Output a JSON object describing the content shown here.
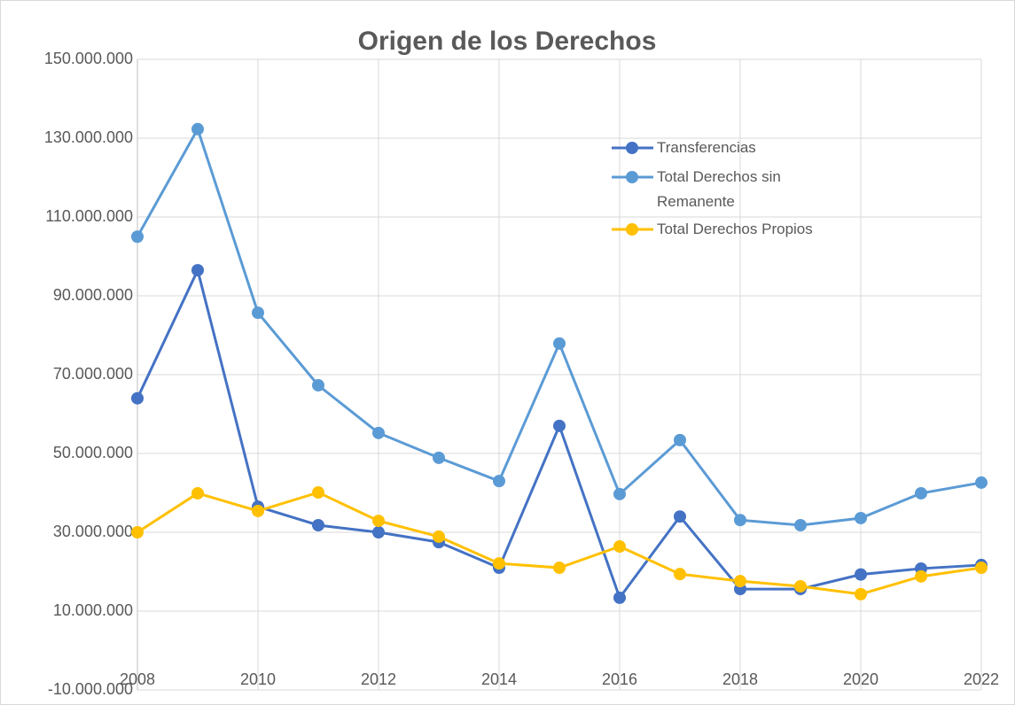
{
  "chart_data": {
    "type": "line",
    "title": "Origen de los Derechos",
    "categories": [
      "2008",
      null,
      "2010",
      null,
      "2012",
      null,
      "2014",
      null,
      "2016",
      null,
      "2018",
      null,
      "2020",
      null,
      "2022"
    ],
    "series": [
      {
        "name": "Transferencias",
        "color": "#4472c4",
        "values": [
          64000000,
          96500000,
          36500000,
          31800000,
          30000000,
          27500000,
          21000000,
          57000000,
          13400000,
          34000000,
          15600000,
          15600000,
          19300000,
          20800000,
          21700000
        ]
      },
      {
        "name": "Total Derechos sin Remanente",
        "color": "#5b9bd5",
        "values": [
          105000000,
          132300000,
          85700000,
          67300000,
          55200000,
          48900000,
          43000000,
          77900000,
          39700000,
          53400000,
          33100000,
          31800000,
          33600000,
          39900000,
          42600000
        ]
      },
      {
        "name": "Total Derechos Propios",
        "color": "#ffc000",
        "values": [
          30000000,
          39900000,
          35400000,
          40100000,
          32900000,
          28900000,
          22100000,
          21000000,
          26400000,
          19400000,
          17600000,
          16300000,
          14300000,
          18800000,
          21000000
        ]
      }
    ],
    "ylim": [
      -10000000,
      150000000
    ],
    "yticks": [
      {
        "value": -10000000,
        "label": "-10.000.000"
      },
      {
        "value": 10000000,
        "label": "10.000.000"
      },
      {
        "value": 30000000,
        "label": "30.000.000"
      },
      {
        "value": 50000000,
        "label": "50.000.000"
      },
      {
        "value": 70000000,
        "label": "70.000.000"
      },
      {
        "value": 90000000,
        "label": "90.000.000"
      },
      {
        "value": 110000000,
        "label": "110.000.000"
      },
      {
        "value": 130000000,
        "label": "130.000.000"
      },
      {
        "value": 150000000,
        "label": "150.000.000"
      }
    ],
    "grid": true,
    "legend": "upper right"
  }
}
